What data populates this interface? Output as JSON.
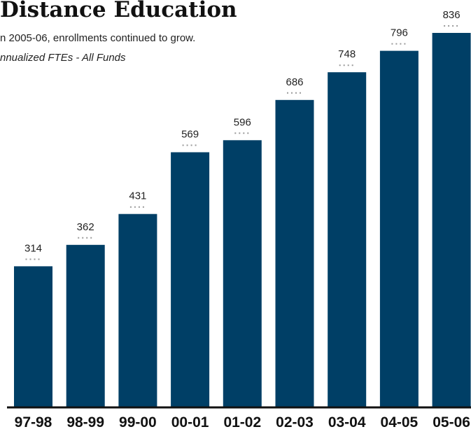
{
  "header": {
    "title": "Distance Education",
    "subtitle": "n 2005-06, enrollments continued to grow.",
    "caption": "nnualized FTEs - All Funds"
  },
  "colors": {
    "bar": "#003f66",
    "axis": "#111111",
    "dots": "#9a9a9a"
  },
  "chart_data": {
    "type": "bar",
    "categories": [
      "97-98",
      "98-99",
      "99-00",
      "00-01",
      "01-02",
      "02-03",
      "03-04",
      "04-05",
      "05-06"
    ],
    "values": [
      314,
      362,
      431,
      569,
      596,
      686,
      748,
      796,
      836
    ],
    "data_labels": [
      "314",
      "362",
      "431",
      "569",
      "596",
      "686",
      "748",
      "796",
      "836"
    ],
    "title": "Distance Education",
    "xlabel": "",
    "ylabel": "",
    "ylim": [
      0,
      860
    ],
    "grid": false,
    "legend": "none"
  }
}
